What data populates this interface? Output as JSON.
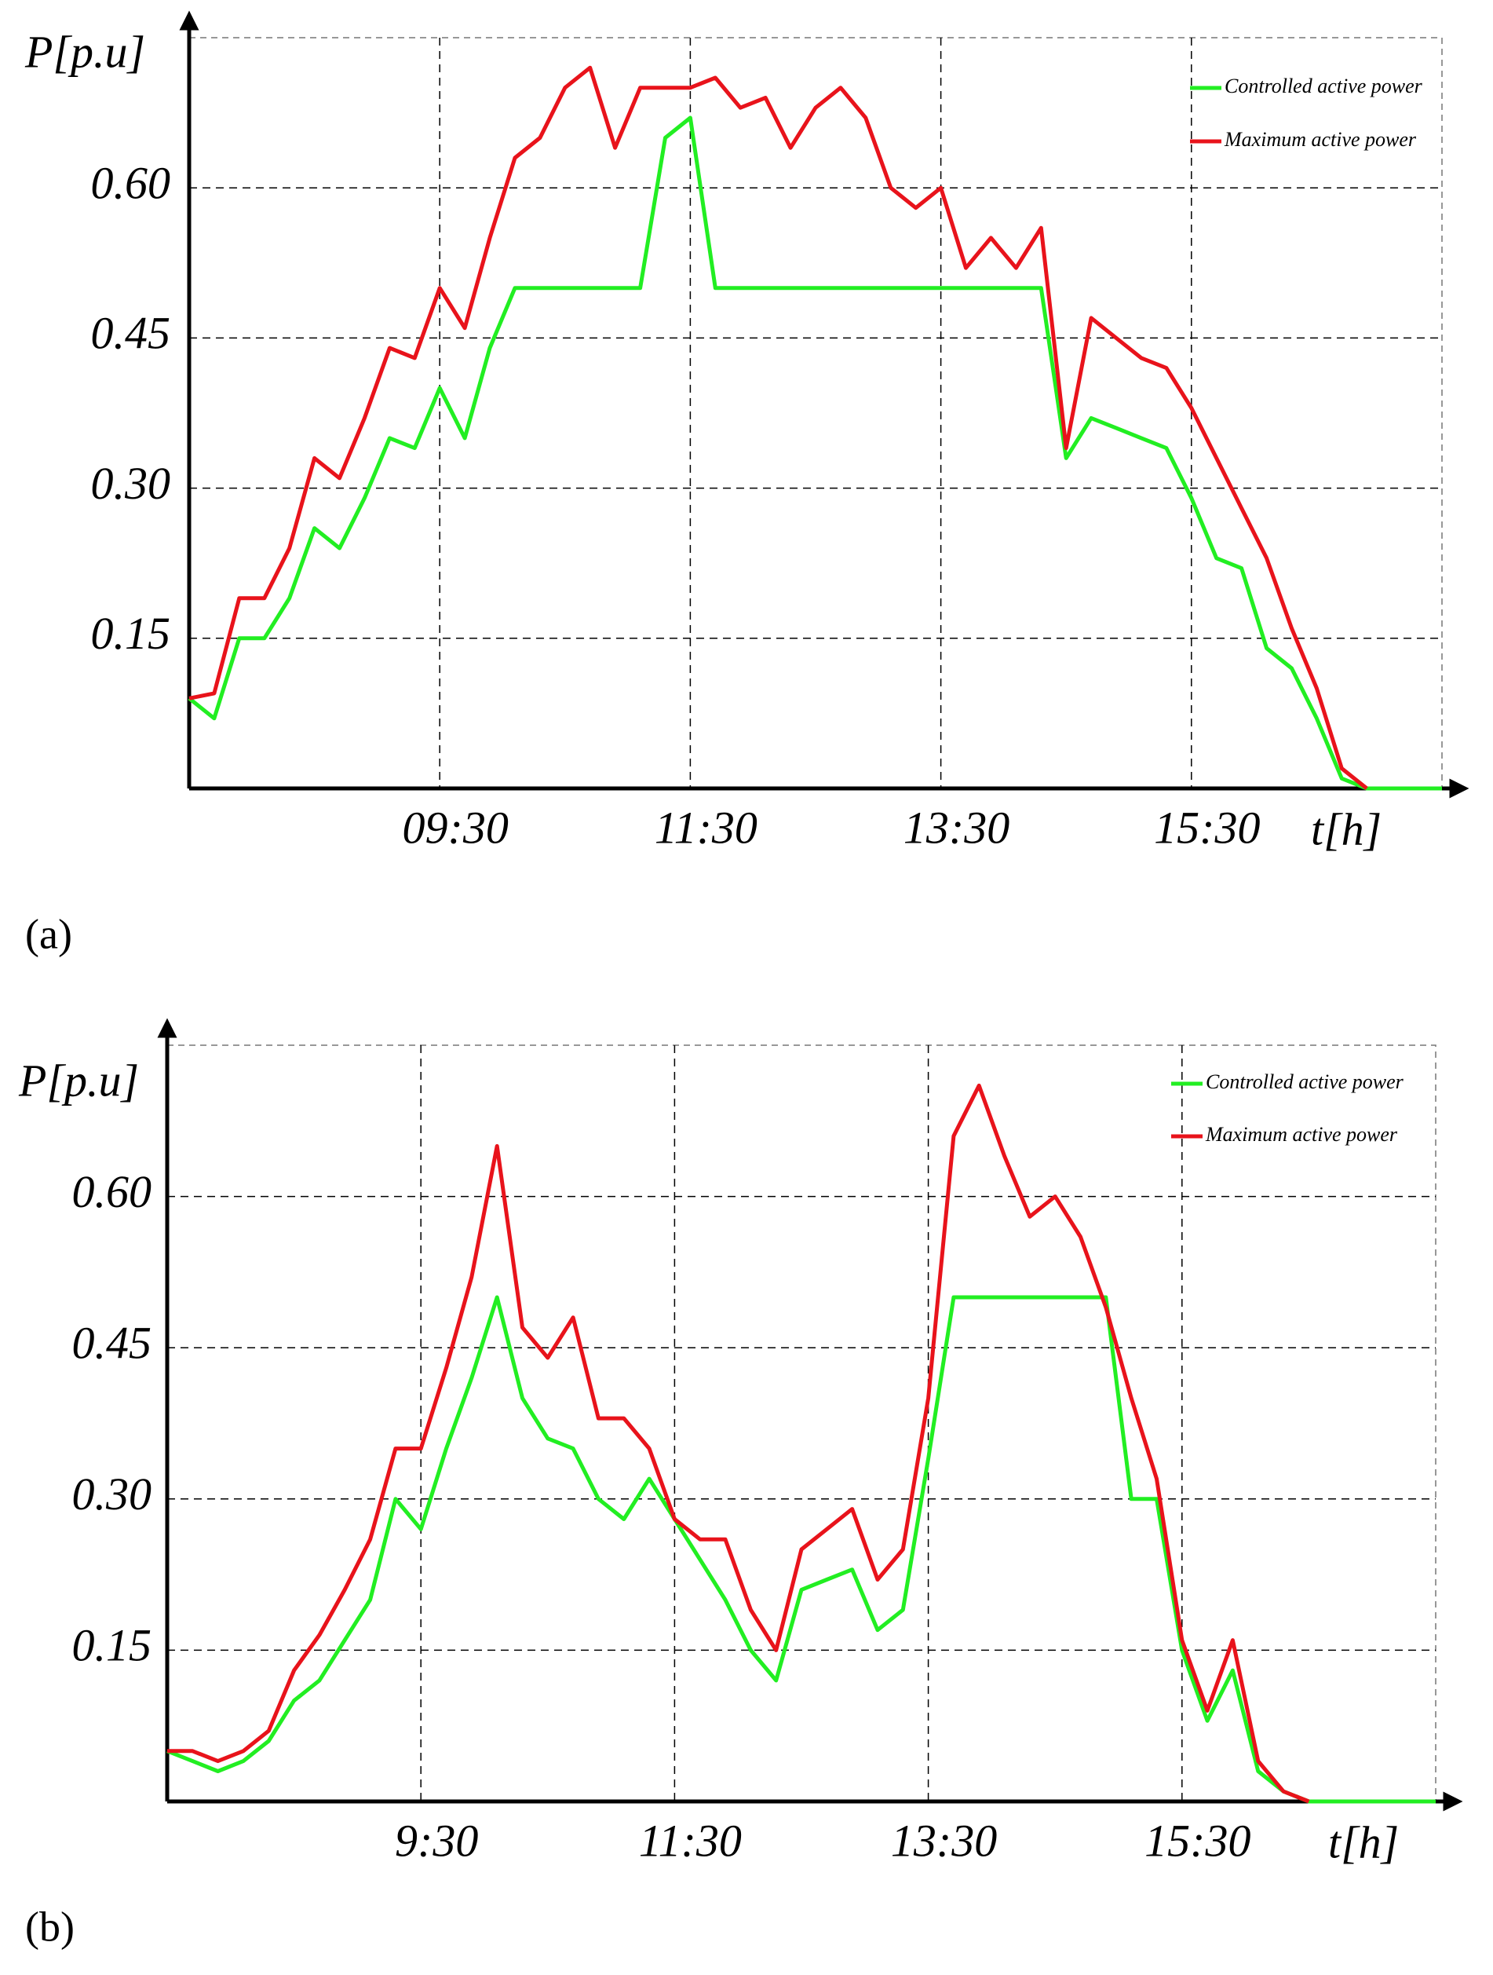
{
  "chart_data": [
    {
      "type": "line",
      "panel_label": "(a)",
      "xlabel": "t[h]",
      "ylabel": "P[p.u]",
      "x": [
        7.5,
        7.7,
        7.9,
        8.1,
        8.3,
        8.5,
        8.7,
        8.9,
        9.1,
        9.3,
        9.5,
        9.7,
        9.9,
        10.1,
        10.3,
        10.5,
        10.7,
        10.9,
        11.1,
        11.3,
        11.5,
        11.7,
        11.9,
        12.1,
        12.3,
        12.5,
        12.7,
        12.9,
        13.1,
        13.3,
        13.5,
        13.7,
        13.9,
        14.1,
        14.3,
        14.5,
        14.7,
        14.9,
        15.1,
        15.3,
        15.5,
        15.7,
        15.9,
        16.1,
        16.3,
        16.5,
        16.7,
        16.9,
        17.1,
        17.3,
        17.5
      ],
      "xlim": [
        7.5,
        17.5
      ],
      "xticks": [
        {
          "value": 9.5,
          "label": "09:30"
        },
        {
          "value": 11.5,
          "label": "11:30"
        },
        {
          "value": 13.5,
          "label": "13:30"
        },
        {
          "value": 15.5,
          "label": "15:30"
        }
      ],
      "ylim": [
        0,
        0.75
      ],
      "yticks": [
        0.15,
        {
          "value": 0.3,
          "label": "0.30"
        },
        0.45,
        {
          "value": 0.6,
          "label": "0.60"
        }
      ],
      "grid": true,
      "series": [
        {
          "name": "Controlled active power",
          "color": "#22ee22",
          "values": [
            0.09,
            0.07,
            0.15,
            0.15,
            0.19,
            0.26,
            0.24,
            0.29,
            0.35,
            0.34,
            0.4,
            0.35,
            0.44,
            0.5,
            0.5,
            0.5,
            0.5,
            0.5,
            0.5,
            0.65,
            0.67,
            0.5,
            0.5,
            0.5,
            0.5,
            0.5,
            0.5,
            0.5,
            0.5,
            0.5,
            0.5,
            0.5,
            0.5,
            0.5,
            0.5,
            0.33,
            0.37,
            0.36,
            0.35,
            0.34,
            0.29,
            0.23,
            0.22,
            0.14,
            0.12,
            0.07,
            0.01,
            0,
            0,
            0,
            0
          ]
        },
        {
          "name": "Maximum active power",
          "color": "#e8131b",
          "values": [
            0.09,
            0.095,
            0.19,
            0.19,
            0.24,
            0.33,
            0.31,
            0.37,
            0.44,
            0.43,
            0.5,
            0.46,
            0.55,
            0.63,
            0.65,
            0.7,
            0.72,
            0.64,
            0.7,
            0.7,
            0.7,
            0.71,
            0.68,
            0.69,
            0.64,
            0.68,
            0.7,
            0.67,
            0.6,
            0.58,
            0.6,
            0.52,
            0.55,
            0.52,
            0.56,
            0.34,
            0.47,
            0.45,
            0.43,
            0.42,
            0.38,
            0.33,
            0.28,
            0.23,
            0.16,
            0.1,
            0.02,
            0,
            null,
            null,
            null
          ]
        }
      ]
    },
    {
      "type": "line",
      "panel_label": "(b)",
      "xlabel": "t[h]",
      "ylabel": "P[p.u]",
      "x": [
        7.5,
        7.7,
        7.9,
        8.1,
        8.3,
        8.5,
        8.7,
        8.9,
        9.1,
        9.3,
        9.5,
        9.7,
        9.9,
        10.1,
        10.3,
        10.5,
        10.7,
        10.9,
        11.1,
        11.3,
        11.5,
        11.7,
        11.9,
        12.1,
        12.3,
        12.5,
        12.7,
        12.9,
        13.1,
        13.3,
        13.5,
        13.7,
        13.9,
        14.1,
        14.3,
        14.5,
        14.7,
        14.9,
        15.1,
        15.3,
        15.5,
        15.7,
        15.9,
        16.1,
        16.3,
        16.5,
        16.7,
        16.9,
        17.1,
        17.3,
        17.5
      ],
      "xlim": [
        7.5,
        17.5
      ],
      "xticks": [
        {
          "value": 9.5,
          "label": "9:30"
        },
        {
          "value": 11.5,
          "label": "11:30"
        },
        {
          "value": 13.5,
          "label": "13:30"
        },
        {
          "value": 15.5,
          "label": "15:30"
        }
      ],
      "ylim": [
        0,
        0.75
      ],
      "yticks": [
        0.15,
        {
          "value": 0.3,
          "label": "0.30"
        },
        0.45,
        {
          "value": 0.6,
          "label": "0.60"
        }
      ],
      "grid": true,
      "series": [
        {
          "name": "Controlled active power",
          "color": "#22ee22",
          "values": [
            0.05,
            0.04,
            0.03,
            0.04,
            0.06,
            0.1,
            0.12,
            0.16,
            0.2,
            0.3,
            0.27,
            0.35,
            0.42,
            0.5,
            0.4,
            0.36,
            0.35,
            0.3,
            0.28,
            0.32,
            0.28,
            0.24,
            0.2,
            0.15,
            0.12,
            0.21,
            0.22,
            0.23,
            0.17,
            0.19,
            0.34,
            0.5,
            0.5,
            0.5,
            0.5,
            0.5,
            0.5,
            0.5,
            0.3,
            0.3,
            0.15,
            0.08,
            0.13,
            0.03,
            0.01,
            0,
            0,
            0,
            0,
            0,
            0
          ]
        },
        {
          "name": "Maximum active power",
          "color": "#e8131b",
          "values": [
            0.05,
            0.05,
            0.04,
            0.05,
            0.07,
            0.13,
            0.165,
            0.21,
            0.26,
            0.35,
            0.35,
            0.43,
            0.52,
            0.65,
            0.47,
            0.44,
            0.48,
            0.38,
            0.38,
            0.35,
            0.28,
            0.26,
            0.26,
            0.19,
            0.15,
            0.25,
            0.27,
            0.29,
            0.22,
            0.25,
            0.4,
            0.66,
            0.71,
            0.64,
            0.58,
            0.6,
            0.56,
            0.49,
            0.4,
            0.32,
            0.16,
            0.09,
            0.16,
            0.04,
            0.01,
            0,
            null,
            null,
            null,
            null,
            null
          ]
        }
      ]
    }
  ]
}
